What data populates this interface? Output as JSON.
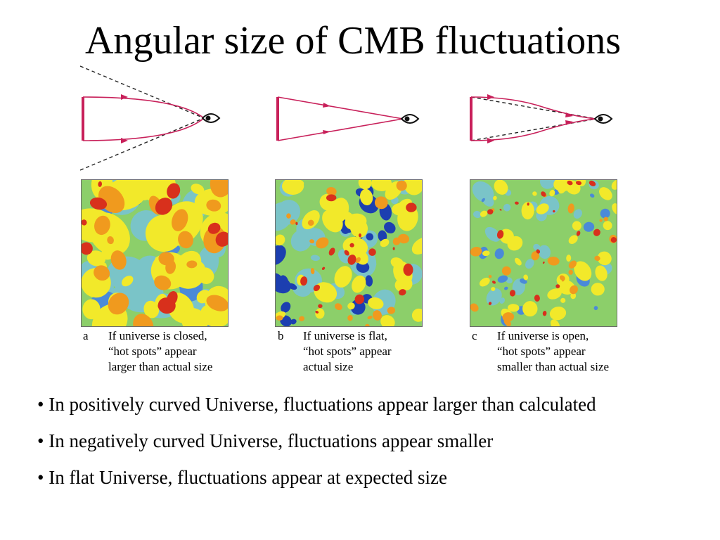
{
  "title": "Angular size of CMB fluctuations",
  "panels": [
    {
      "letter": "a",
      "caption": "If universe is closed,\n“hot spots” appear\nlarger than actual size",
      "geometry": "closed"
    },
    {
      "letter": "b",
      "caption": "If universe is flat,\n“hot spots” appear\nactual size",
      "geometry": "flat"
    },
    {
      "letter": "c",
      "caption": "If universe is open,\n“hot spots” appear\nsmaller than actual size",
      "geometry": "open"
    }
  ],
  "bullets": [
    "• In positively curved Universe, fluctuations appear larger than calculated",
    "• In negatively curved Universe, fluctuations appear smaller",
    "• In flat Universe, fluctuations appear at expected size"
  ],
  "colors": {
    "ray": "#c8205a",
    "dashed_line": "#222222",
    "map_background": "#8ccf6a",
    "map_cool": "#7ac4c8",
    "map_blue": "#4a8ad8",
    "map_deep_blue": "#1c3fb0",
    "map_yellow": "#f2e92a",
    "map_orange": "#f09a1e",
    "map_red": "#d8301c"
  }
}
